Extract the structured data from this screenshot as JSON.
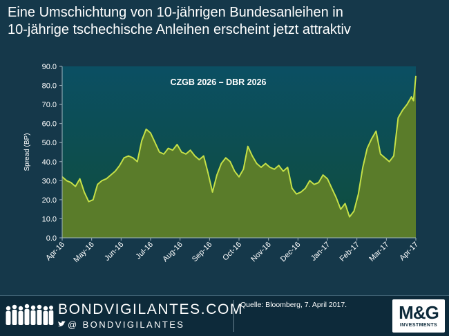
{
  "header": {
    "title_line1": "Eine Umschichtung von 10-jährigen Bundesanleihen in",
    "title_line2": "10-jährige tschechische Anleihen erscheint jetzt attraktiv"
  },
  "chart_data": {
    "type": "area",
    "title": "CZGB 2026 – DBR 2026",
    "ylabel": "Spread (BP)",
    "xlabel": "",
    "ylim": [
      0,
      90
    ],
    "yticks": [
      0,
      10,
      20,
      30,
      40,
      50,
      60,
      70,
      80,
      90
    ],
    "ytick_labels": [
      "0.0",
      "10.0",
      "20.0",
      "30.0",
      "40.0",
      "50.0",
      "60.0",
      "70.0",
      "80.0",
      "90.0"
    ],
    "xticks": [
      "Apr-16",
      "May-16",
      "Jun-16",
      "Jul-16",
      "Aug-16",
      "Sep-16",
      "Oct-16",
      "Nov-16",
      "Dec-16",
      "Jan-17",
      "Feb-17",
      "Mar-17",
      "Apr-17"
    ],
    "x_month_index": [
      0,
      0.15,
      0.3,
      0.45,
      0.6,
      0.75,
      0.9,
      1.05,
      1.2,
      1.35,
      1.5,
      1.65,
      1.8,
      1.95,
      2.1,
      2.25,
      2.4,
      2.55,
      2.7,
      2.85,
      3.0,
      3.15,
      3.3,
      3.45,
      3.6,
      3.75,
      3.9,
      4.05,
      4.2,
      4.35,
      4.5,
      4.65,
      4.8,
      4.95,
      5.1,
      5.25,
      5.4,
      5.55,
      5.7,
      5.85,
      6.0,
      6.15,
      6.3,
      6.45,
      6.6,
      6.75,
      6.9,
      7.05,
      7.2,
      7.35,
      7.5,
      7.65,
      7.8,
      7.95,
      8.1,
      8.25,
      8.4,
      8.55,
      8.7,
      8.85,
      9.0,
      9.15,
      9.3,
      9.45,
      9.6,
      9.75,
      9.9,
      10.05,
      10.2,
      10.35,
      10.5,
      10.65,
      10.8,
      10.95,
      11.1,
      11.25,
      11.4,
      11.55,
      11.7,
      11.85,
      11.92,
      12.0
    ],
    "series": [
      {
        "name": "CZGB 2026 – DBR 2026",
        "values": [
          32,
          30,
          29,
          27,
          31,
          24,
          19,
          20,
          28,
          30,
          31,
          33,
          35,
          38,
          42,
          43,
          42,
          40,
          51,
          57,
          55,
          50,
          45,
          44,
          47,
          46,
          49,
          45,
          44,
          46,
          43,
          41,
          43,
          34,
          24,
          33,
          39,
          42,
          40,
          35,
          32,
          36,
          48,
          43,
          39,
          37,
          39,
          37,
          36,
          38,
          35,
          37,
          26,
          23,
          24,
          26,
          30,
          28,
          29,
          33,
          31,
          26,
          21,
          15,
          18,
          11,
          14,
          23,
          37,
          47,
          52,
          56,
          44,
          42,
          40,
          43,
          63,
          67,
          70,
          74,
          72,
          85
        ]
      }
    ],
    "colors": {
      "plot_bg_top": "#0b4f63",
      "plot_bg_bottom": "#0f4d3c",
      "area_fill": "#5a7c2a",
      "line": "#c4e048",
      "axis": "#9fb3bd",
      "tick_text": "#ffffff"
    }
  },
  "footer": {
    "brand": "BONDVIGILANTES.COM",
    "handle": "@ BONDVIGILANTES",
    "source": "Quelle: Bloomberg, 7. April 2017.",
    "logo_main": "M&G",
    "logo_sub": "INVESTMENTS"
  }
}
